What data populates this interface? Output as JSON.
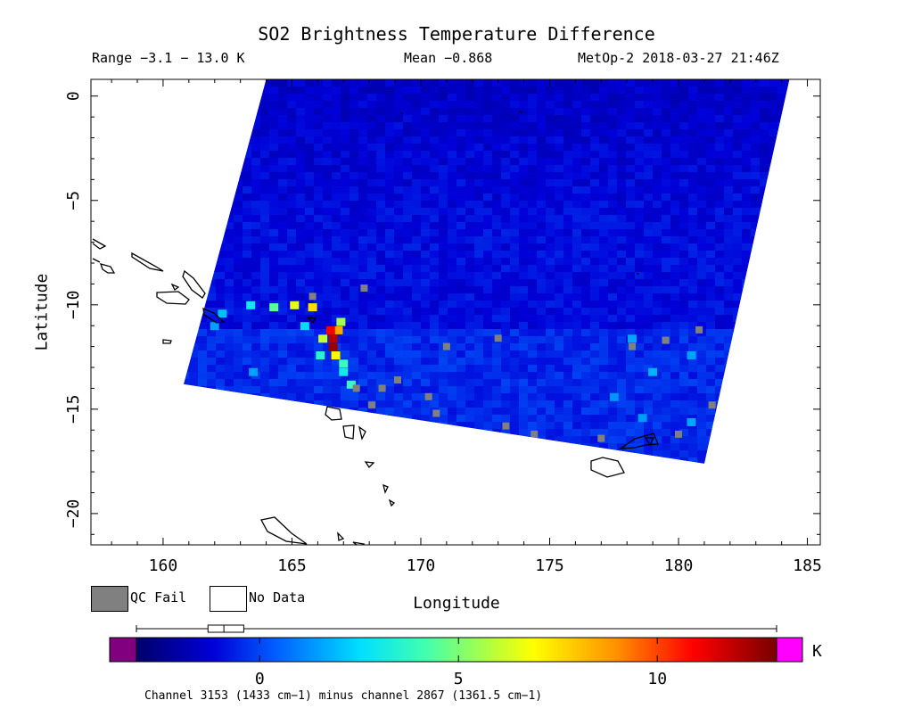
{
  "header": {
    "title": "SO2 Brightness Temperature Difference",
    "range": "Range −3.1 − 13.0 K",
    "mean": "Mean −0.868",
    "satellite": "MetOp-2 2018-03-27 21:46Z"
  },
  "legend": {
    "qc_fail": "QC Fail",
    "no_data": "No Data",
    "qc_fail_color": "#808080",
    "no_data_color": "#ffffff"
  },
  "colorbar": {
    "unit": "K",
    "min": -3.1,
    "max": 13.0,
    "ticks": [
      "0",
      "5",
      "10"
    ],
    "tick_values": [
      0,
      5,
      10
    ],
    "under_color": "#800080",
    "over_color": "#ff00ff",
    "boxplot": {
      "whisker_low": -3.1,
      "q1": -1.3,
      "median": -0.9,
      "q3": -0.4,
      "whisker_high": 13.0
    },
    "caption": "Channel 3153 (1433 cm−1) minus channel 2867 (1361.5 cm−1)"
  },
  "chart_data": {
    "type": "heatmap",
    "title": "SO2 Brightness Temperature Difference",
    "xlabel": "Longitude",
    "ylabel": "Latitude",
    "xlim": [
      157.2,
      185.5
    ],
    "ylim": [
      -21.5,
      0.8
    ],
    "x_ticks": [
      160,
      165,
      170,
      175,
      180,
      185
    ],
    "y_ticks": [
      0,
      -5,
      -10,
      -15,
      -20
    ],
    "swath_corners_lonlat": [
      [
        164.0,
        0.8
      ],
      [
        184.3,
        0.8
      ],
      [
        181.0,
        -17.6
      ],
      [
        160.8,
        -13.8
      ]
    ],
    "background_value": -1.0,
    "plume_points": [
      {
        "lon": 166.6,
        "lat": -12.0,
        "value": 12.5
      },
      {
        "lon": 166.6,
        "lat": -11.6,
        "value": 12.0
      },
      {
        "lon": 166.8,
        "lat": -11.2,
        "value": 8.5
      },
      {
        "lon": 166.5,
        "lat": -11.2,
        "value": 11.0
      },
      {
        "lon": 166.9,
        "lat": -10.8,
        "value": 5.5
      },
      {
        "lon": 166.2,
        "lat": -11.6,
        "value": 6.0
      },
      {
        "lon": 166.7,
        "lat": -12.4,
        "value": 7.0
      },
      {
        "lon": 165.8,
        "lat": -10.1,
        "value": 7.5
      },
      {
        "lon": 165.1,
        "lat": -10.0,
        "value": 6.5
      },
      {
        "lon": 164.3,
        "lat": -10.1,
        "value": 4.5
      },
      {
        "lon": 163.4,
        "lat": -10.0,
        "value": 3.0
      },
      {
        "lon": 166.1,
        "lat": -12.4,
        "value": 3.5
      },
      {
        "lon": 167.0,
        "lat": -12.8,
        "value": 4.0
      },
      {
        "lon": 167.3,
        "lat": -13.8,
        "value": 4.0
      },
      {
        "lon": 167.0,
        "lat": -13.2,
        "value": 3.0
      },
      {
        "lon": 165.5,
        "lat": -11.0,
        "value": 2.5
      },
      {
        "lon": 162.3,
        "lat": -10.4,
        "value": 2.0
      },
      {
        "lon": 162.0,
        "lat": -11.0,
        "value": 1.5
      },
      {
        "lon": 163.5,
        "lat": -13.2,
        "value": 1.5
      },
      {
        "lon": 178.2,
        "lat": -11.6,
        "value": 1.6
      },
      {
        "lon": 179.0,
        "lat": -13.2,
        "value": 1.8
      },
      {
        "lon": 180.5,
        "lat": -12.4,
        "value": 1.5
      },
      {
        "lon": 177.5,
        "lat": -14.4,
        "value": 1.3
      },
      {
        "lon": 178.6,
        "lat": -15.4,
        "value": 1.4
      },
      {
        "lon": 180.5,
        "lat": -15.6,
        "value": 1.6
      }
    ],
    "qc_fail_points": [
      {
        "lon": 165.8,
        "lat": -9.6
      },
      {
        "lon": 167.8,
        "lat": -9.2
      },
      {
        "lon": 167.5,
        "lat": -14.0
      },
      {
        "lon": 168.5,
        "lat": -14.0
      },
      {
        "lon": 169.1,
        "lat": -13.6
      },
      {
        "lon": 170.3,
        "lat": -14.4
      },
      {
        "lon": 168.1,
        "lat": -14.8
      },
      {
        "lon": 170.6,
        "lat": -15.2
      },
      {
        "lon": 171.0,
        "lat": -12.0
      },
      {
        "lon": 173.0,
        "lat": -11.6
      },
      {
        "lon": 173.3,
        "lat": -15.8
      },
      {
        "lon": 173.8,
        "lat": -16.6
      },
      {
        "lon": 174.4,
        "lat": -16.2
      },
      {
        "lon": 177.0,
        "lat": -16.4
      },
      {
        "lon": 178.2,
        "lat": -12.0
      },
      {
        "lon": 179.5,
        "lat": -11.7
      },
      {
        "lon": 180.8,
        "lat": -11.2
      },
      {
        "lon": 181.3,
        "lat": -14.8
      },
      {
        "lon": 180.0,
        "lat": -16.2
      }
    ]
  }
}
